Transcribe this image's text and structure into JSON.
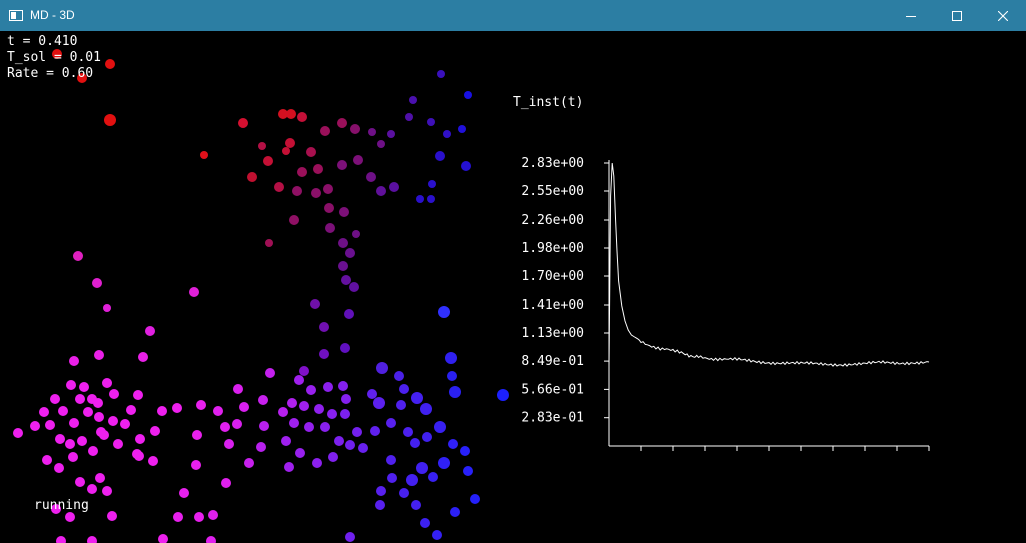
{
  "window": {
    "title": "MD - 3D",
    "minimize_icon": "minimize-icon",
    "maximize_icon": "maximize-icon",
    "close_icon": "close-icon",
    "titlebar_color": "#2c7ea3"
  },
  "hud": {
    "time": "t = 0.410",
    "t_sol": "T_sol = 0.01",
    "rate": "Rate = 0.60",
    "status": "running"
  },
  "chart_data": {
    "type": "line",
    "title": "T_inst(t)",
    "y_tick_labels": [
      "2.83e+00",
      "2.55e+00",
      "2.26e+00",
      "1.98e+00",
      "1.70e+00",
      "1.41e+00",
      "1.13e+00",
      "8.49e-01",
      "5.66e-01",
      "2.83e-01"
    ],
    "y_ticks": [
      2.83,
      2.55,
      2.26,
      1.98,
      1.7,
      1.41,
      1.13,
      0.849,
      0.566,
      0.283
    ],
    "ylim": [
      0,
      3.0
    ],
    "xlim": [
      0,
      1
    ],
    "x_tick_count": 10,
    "series": [
      {
        "color": "#ffffff",
        "points": [
          [
            0.0,
            0.8
          ],
          [
            0.005,
            2.5
          ],
          [
            0.01,
            2.83
          ],
          [
            0.015,
            2.7
          ],
          [
            0.02,
            2.3
          ],
          [
            0.025,
            1.95
          ],
          [
            0.03,
            1.65
          ],
          [
            0.04,
            1.4
          ],
          [
            0.05,
            1.25
          ],
          [
            0.06,
            1.16
          ],
          [
            0.07,
            1.11
          ],
          [
            0.08,
            1.09
          ],
          [
            0.09,
            1.07
          ],
          [
            0.1,
            1.05
          ],
          [
            0.12,
            1.02
          ],
          [
            0.14,
            1.0
          ],
          [
            0.16,
            0.98
          ],
          [
            0.18,
            0.97
          ],
          [
            0.2,
            0.95
          ],
          [
            0.22,
            0.93
          ],
          [
            0.25,
            0.91
          ],
          [
            0.28,
            0.9
          ],
          [
            0.32,
            0.88
          ],
          [
            0.36,
            0.87
          ],
          [
            0.4,
            0.86
          ],
          [
            0.45,
            0.85
          ],
          [
            0.5,
            0.84
          ],
          [
            0.55,
            0.83
          ],
          [
            0.6,
            0.82
          ],
          [
            0.65,
            0.82
          ],
          [
            0.7,
            0.82
          ],
          [
            0.75,
            0.82
          ],
          [
            0.8,
            0.82
          ],
          [
            0.85,
            0.83
          ],
          [
            0.9,
            0.83
          ],
          [
            0.95,
            0.84
          ],
          [
            1.0,
            0.84
          ]
        ]
      }
    ]
  },
  "particles": [
    {
      "x": 57,
      "y": 23,
      "c": "#e21010",
      "r": 5
    },
    {
      "x": 110,
      "y": 33,
      "c": "#e21010",
      "r": 5
    },
    {
      "x": 82,
      "y": 47,
      "c": "#e21010",
      "r": 5
    },
    {
      "x": 110,
      "y": 89,
      "c": "#e21010",
      "r": 6
    },
    {
      "x": 204,
      "y": 124,
      "c": "#e0101a",
      "r": 4
    },
    {
      "x": 243,
      "y": 92,
      "c": "#d41030",
      "r": 5
    },
    {
      "x": 283,
      "y": 83,
      "c": "#d41020",
      "r": 5
    },
    {
      "x": 291,
      "y": 83,
      "c": "#d41020",
      "r": 5
    },
    {
      "x": 302,
      "y": 86,
      "c": "#c41038",
      "r": 5
    },
    {
      "x": 290,
      "y": 112,
      "c": "#c41035",
      "r": 5
    },
    {
      "x": 286,
      "y": 120,
      "c": "#c41035",
      "r": 4
    },
    {
      "x": 268,
      "y": 130,
      "c": "#c41035",
      "r": 5
    },
    {
      "x": 262,
      "y": 115,
      "c": "#b41045",
      "r": 4
    },
    {
      "x": 252,
      "y": 146,
      "c": "#c01030",
      "r": 5
    },
    {
      "x": 279,
      "y": 156,
      "c": "#b41045",
      "r": 5
    },
    {
      "x": 311,
      "y": 121,
      "c": "#a8104e",
      "r": 5
    },
    {
      "x": 325,
      "y": 100,
      "c": "#9a105a",
      "r": 5
    },
    {
      "x": 342,
      "y": 92,
      "c": "#9a105a",
      "r": 5
    },
    {
      "x": 355,
      "y": 98,
      "c": "#86106a",
      "r": 5
    },
    {
      "x": 318,
      "y": 138,
      "c": "#9a105a",
      "r": 5
    },
    {
      "x": 302,
      "y": 141,
      "c": "#9a105a",
      "r": 5
    },
    {
      "x": 297,
      "y": 160,
      "c": "#8f1064",
      "r": 5
    },
    {
      "x": 316,
      "y": 162,
      "c": "#8a1068",
      "r": 5
    },
    {
      "x": 328,
      "y": 158,
      "c": "#8a1068",
      "r": 5
    },
    {
      "x": 342,
      "y": 134,
      "c": "#7c1078",
      "r": 5
    },
    {
      "x": 358,
      "y": 129,
      "c": "#7c1078",
      "r": 5
    },
    {
      "x": 371,
      "y": 146,
      "c": "#6e1086",
      "r": 5
    },
    {
      "x": 381,
      "y": 160,
      "c": "#60109a",
      "r": 5
    },
    {
      "x": 394,
      "y": 156,
      "c": "#5a10a0",
      "r": 5
    },
    {
      "x": 381,
      "y": 113,
      "c": "#6e1086",
      "r": 4
    },
    {
      "x": 372,
      "y": 101,
      "c": "#6e1086",
      "r": 4
    },
    {
      "x": 391,
      "y": 103,
      "c": "#5a10a0",
      "r": 4
    },
    {
      "x": 409,
      "y": 86,
      "c": "#5010a8",
      "r": 4
    },
    {
      "x": 413,
      "y": 69,
      "c": "#4a10ae",
      "r": 4
    },
    {
      "x": 431,
      "y": 91,
      "c": "#3e10b8",
      "r": 4
    },
    {
      "x": 441,
      "y": 43,
      "c": "#3a10bc",
      "r": 4
    },
    {
      "x": 447,
      "y": 103,
      "c": "#3010c8",
      "r": 4
    },
    {
      "x": 440,
      "y": 125,
      "c": "#2a10cc",
      "r": 5
    },
    {
      "x": 432,
      "y": 153,
      "c": "#2a10cc",
      "r": 4
    },
    {
      "x": 420,
      "y": 168,
      "c": "#2a10cc",
      "r": 4
    },
    {
      "x": 431,
      "y": 168,
      "c": "#2a10cc",
      "r": 4
    },
    {
      "x": 466,
      "y": 135,
      "c": "#2410d4",
      "r": 5
    },
    {
      "x": 462,
      "y": 98,
      "c": "#2010da",
      "r": 4
    },
    {
      "x": 468,
      "y": 64,
      "c": "#1810e4",
      "r": 4
    },
    {
      "x": 329,
      "y": 177,
      "c": "#8a1068",
      "r": 5
    },
    {
      "x": 344,
      "y": 181,
      "c": "#7c1078",
      "r": 5
    },
    {
      "x": 294,
      "y": 189,
      "c": "#8f1064",
      "r": 5
    },
    {
      "x": 330,
      "y": 197,
      "c": "#7c1078",
      "r": 5
    },
    {
      "x": 356,
      "y": 203,
      "c": "#6e1086",
      "r": 4
    },
    {
      "x": 343,
      "y": 212,
      "c": "#6e1086",
      "r": 5
    },
    {
      "x": 269,
      "y": 212,
      "c": "#a01055",
      "r": 4
    },
    {
      "x": 350,
      "y": 222,
      "c": "#6a1090",
      "r": 5
    },
    {
      "x": 343,
      "y": 235,
      "c": "#6a1090",
      "r": 5
    },
    {
      "x": 346,
      "y": 249,
      "c": "#6410a0",
      "r": 5
    },
    {
      "x": 354,
      "y": 256,
      "c": "#6010a0",
      "r": 5
    },
    {
      "x": 315,
      "y": 273,
      "c": "#7010a8",
      "r": 5
    },
    {
      "x": 349,
      "y": 283,
      "c": "#6010b8",
      "r": 5
    },
    {
      "x": 324,
      "y": 296,
      "c": "#7010b0",
      "r": 5
    },
    {
      "x": 444,
      "y": 281,
      "c": "#3030ff",
      "r": 6
    },
    {
      "x": 345,
      "y": 317,
      "c": "#6010c0",
      "r": 5
    },
    {
      "x": 324,
      "y": 323,
      "c": "#7010c0",
      "r": 5
    },
    {
      "x": 304,
      "y": 340,
      "c": "#8010c8",
      "r": 5
    },
    {
      "x": 451,
      "y": 327,
      "c": "#3020f0",
      "r": 6
    },
    {
      "x": 382,
      "y": 337,
      "c": "#5020e0",
      "r": 6
    },
    {
      "x": 399,
      "y": 345,
      "c": "#4a20e8",
      "r": 5
    },
    {
      "x": 452,
      "y": 345,
      "c": "#2a20f0",
      "r": 5
    },
    {
      "x": 455,
      "y": 361,
      "c": "#2a20f0",
      "r": 6
    },
    {
      "x": 503,
      "y": 364,
      "c": "#1c20ff",
      "r": 6
    },
    {
      "x": 78,
      "y": 225,
      "c": "#e020c0",
      "r": 5
    },
    {
      "x": 97,
      "y": 252,
      "c": "#e020d0",
      "r": 5
    },
    {
      "x": 194,
      "y": 261,
      "c": "#e020d8",
      "r": 5
    },
    {
      "x": 107,
      "y": 277,
      "c": "#e020d8",
      "r": 4
    },
    {
      "x": 150,
      "y": 300,
      "c": "#e020e0",
      "r": 5
    },
    {
      "x": 143,
      "y": 326,
      "c": "#ea20e8",
      "r": 5
    },
    {
      "x": 99,
      "y": 324,
      "c": "#ea20e8",
      "r": 5
    },
    {
      "x": 74,
      "y": 330,
      "c": "#ea20e8",
      "r": 5
    },
    {
      "x": 18,
      "y": 402,
      "c": "#ee20ee",
      "r": 5
    },
    {
      "x": 44,
      "y": 381,
      "c": "#ee20ee",
      "r": 5
    },
    {
      "x": 50,
      "y": 394,
      "c": "#ee20ee",
      "r": 5
    },
    {
      "x": 63,
      "y": 380,
      "c": "#ee20ee",
      "r": 5
    },
    {
      "x": 74,
      "y": 392,
      "c": "#ee20ee",
      "r": 5
    },
    {
      "x": 55,
      "y": 368,
      "c": "#ee20ee",
      "r": 5
    },
    {
      "x": 71,
      "y": 354,
      "c": "#ee20ee",
      "r": 5
    },
    {
      "x": 80,
      "y": 368,
      "c": "#ee20ee",
      "r": 5
    },
    {
      "x": 88,
      "y": 381,
      "c": "#ee20ee",
      "r": 5
    },
    {
      "x": 99,
      "y": 386,
      "c": "#ee20ee",
      "r": 5
    },
    {
      "x": 101,
      "y": 401,
      "c": "#ee20ee",
      "r": 5
    },
    {
      "x": 113,
      "y": 390,
      "c": "#ee20ee",
      "r": 5
    },
    {
      "x": 125,
      "y": 393,
      "c": "#ee20ee",
      "r": 5
    },
    {
      "x": 118,
      "y": 413,
      "c": "#ee20ee",
      "r": 5
    },
    {
      "x": 131,
      "y": 379,
      "c": "#ee20ee",
      "r": 5
    },
    {
      "x": 138,
      "y": 364,
      "c": "#ee20ee",
      "r": 5
    },
    {
      "x": 107,
      "y": 352,
      "c": "#ee20ee",
      "r": 5
    },
    {
      "x": 114,
      "y": 363,
      "c": "#ee20ee",
      "r": 5
    },
    {
      "x": 92,
      "y": 368,
      "c": "#ee20ee",
      "r": 5
    },
    {
      "x": 84,
      "y": 356,
      "c": "#ee20ee",
      "r": 5
    },
    {
      "x": 98,
      "y": 372,
      "c": "#ee20ee",
      "r": 5
    },
    {
      "x": 60,
      "y": 408,
      "c": "#ee20ee",
      "r": 5
    },
    {
      "x": 70,
      "y": 413,
      "c": "#ee20ee",
      "r": 5
    },
    {
      "x": 82,
      "y": 410,
      "c": "#ee20ee",
      "r": 5
    },
    {
      "x": 93,
      "y": 420,
      "c": "#ee20ee",
      "r": 5
    },
    {
      "x": 104,
      "y": 404,
      "c": "#ee20ee",
      "r": 5
    },
    {
      "x": 137,
      "y": 423,
      "c": "#ee20ee",
      "r": 5
    },
    {
      "x": 155,
      "y": 400,
      "c": "#ee20ee",
      "r": 5
    },
    {
      "x": 162,
      "y": 380,
      "c": "#ee20ee",
      "r": 5
    },
    {
      "x": 177,
      "y": 377,
      "c": "#ee20ee",
      "r": 5
    },
    {
      "x": 197,
      "y": 404,
      "c": "#e820ee",
      "r": 5
    },
    {
      "x": 201,
      "y": 374,
      "c": "#e820ee",
      "r": 5
    },
    {
      "x": 218,
      "y": 380,
      "c": "#e020ee",
      "r": 5
    },
    {
      "x": 225,
      "y": 396,
      "c": "#e020ee",
      "r": 5
    },
    {
      "x": 238,
      "y": 358,
      "c": "#da20ee",
      "r": 5
    },
    {
      "x": 244,
      "y": 376,
      "c": "#d820ee",
      "r": 5
    },
    {
      "x": 237,
      "y": 393,
      "c": "#d820ee",
      "r": 5
    },
    {
      "x": 263,
      "y": 369,
      "c": "#c820ee",
      "r": 5
    },
    {
      "x": 270,
      "y": 342,
      "c": "#c420ee",
      "r": 5
    },
    {
      "x": 283,
      "y": 381,
      "c": "#b820ee",
      "r": 5
    },
    {
      "x": 292,
      "y": 372,
      "c": "#b020ee",
      "r": 5
    },
    {
      "x": 299,
      "y": 349,
      "c": "#a020ee",
      "r": 5
    },
    {
      "x": 304,
      "y": 375,
      "c": "#a020ee",
      "r": 5
    },
    {
      "x": 311,
      "y": 359,
      "c": "#9820ee",
      "r": 5
    },
    {
      "x": 319,
      "y": 378,
      "c": "#9020ee",
      "r": 5
    },
    {
      "x": 328,
      "y": 356,
      "c": "#8c20ee",
      "r": 5
    },
    {
      "x": 343,
      "y": 355,
      "c": "#8420ee",
      "r": 5
    },
    {
      "x": 332,
      "y": 383,
      "c": "#8820ee",
      "r": 5
    },
    {
      "x": 325,
      "y": 396,
      "c": "#8820ee",
      "r": 5
    },
    {
      "x": 309,
      "y": 396,
      "c": "#9420ee",
      "r": 5
    },
    {
      "x": 294,
      "y": 392,
      "c": "#a020ee",
      "r": 5
    },
    {
      "x": 286,
      "y": 410,
      "c": "#a020ee",
      "r": 5
    },
    {
      "x": 264,
      "y": 395,
      "c": "#b820ee",
      "r": 5
    },
    {
      "x": 261,
      "y": 416,
      "c": "#b820ee",
      "r": 5
    },
    {
      "x": 249,
      "y": 432,
      "c": "#c820ee",
      "r": 5
    },
    {
      "x": 229,
      "y": 413,
      "c": "#d820ee",
      "r": 5
    },
    {
      "x": 196,
      "y": 434,
      "c": "#e820ee",
      "r": 5
    },
    {
      "x": 226,
      "y": 452,
      "c": "#e020ee",
      "r": 5
    },
    {
      "x": 184,
      "y": 462,
      "c": "#e820ee",
      "r": 5
    },
    {
      "x": 199,
      "y": 486,
      "c": "#e820ee",
      "r": 5
    },
    {
      "x": 178,
      "y": 486,
      "c": "#e820ee",
      "r": 5
    },
    {
      "x": 213,
      "y": 484,
      "c": "#e020ee",
      "r": 5
    },
    {
      "x": 211,
      "y": 510,
      "c": "#e020ee",
      "r": 5
    },
    {
      "x": 163,
      "y": 508,
      "c": "#ee20ee",
      "r": 5
    },
    {
      "x": 139,
      "y": 425,
      "c": "#ee20ee",
      "r": 5
    },
    {
      "x": 140,
      "y": 408,
      "c": "#ee20ee",
      "r": 5
    },
    {
      "x": 153,
      "y": 430,
      "c": "#ee20ee",
      "r": 5
    },
    {
      "x": 80,
      "y": 451,
      "c": "#ee20ee",
      "r": 5
    },
    {
      "x": 92,
      "y": 458,
      "c": "#ee20ee",
      "r": 5
    },
    {
      "x": 100,
      "y": 447,
      "c": "#ee20ee",
      "r": 5
    },
    {
      "x": 107,
      "y": 460,
      "c": "#ee20ee",
      "r": 5
    },
    {
      "x": 112,
      "y": 485,
      "c": "#ee20ee",
      "r": 5
    },
    {
      "x": 56,
      "y": 478,
      "c": "#ee20ee",
      "r": 5
    },
    {
      "x": 70,
      "y": 486,
      "c": "#ee20ee",
      "r": 5
    },
    {
      "x": 47,
      "y": 429,
      "c": "#ee20ee",
      "r": 5
    },
    {
      "x": 59,
      "y": 437,
      "c": "#ee20ee",
      "r": 5
    },
    {
      "x": 73,
      "y": 426,
      "c": "#ee20ee",
      "r": 5
    },
    {
      "x": 35,
      "y": 395,
      "c": "#ee20ee",
      "r": 5
    },
    {
      "x": 92,
      "y": 510,
      "c": "#ee20ee",
      "r": 5
    },
    {
      "x": 61,
      "y": 510,
      "c": "#ee20ee",
      "r": 5
    },
    {
      "x": 346,
      "y": 368,
      "c": "#8420ee",
      "r": 5
    },
    {
      "x": 345,
      "y": 383,
      "c": "#7c20ee",
      "r": 5
    },
    {
      "x": 357,
      "y": 401,
      "c": "#7420ee",
      "r": 5
    },
    {
      "x": 350,
      "y": 414,
      "c": "#7020ee",
      "r": 5
    },
    {
      "x": 363,
      "y": 417,
      "c": "#6820ee",
      "r": 5
    },
    {
      "x": 375,
      "y": 400,
      "c": "#6020ee",
      "r": 5
    },
    {
      "x": 379,
      "y": 372,
      "c": "#5c20ee",
      "r": 6
    },
    {
      "x": 372,
      "y": 363,
      "c": "#6020ee",
      "r": 5
    },
    {
      "x": 391,
      "y": 392,
      "c": "#5820ee",
      "r": 5
    },
    {
      "x": 401,
      "y": 374,
      "c": "#5020ee",
      "r": 5
    },
    {
      "x": 404,
      "y": 358,
      "c": "#4c20ee",
      "r": 5
    },
    {
      "x": 417,
      "y": 367,
      "c": "#4420f0",
      "r": 6
    },
    {
      "x": 426,
      "y": 378,
      "c": "#4020f0",
      "r": 6
    },
    {
      "x": 408,
      "y": 401,
      "c": "#4c20ee",
      "r": 5
    },
    {
      "x": 415,
      "y": 412,
      "c": "#4420f0",
      "r": 5
    },
    {
      "x": 427,
      "y": 406,
      "c": "#4020f0",
      "r": 5
    },
    {
      "x": 440,
      "y": 396,
      "c": "#3820f2",
      "r": 6
    },
    {
      "x": 453,
      "y": 413,
      "c": "#3020f6",
      "r": 5
    },
    {
      "x": 465,
      "y": 420,
      "c": "#2820fa",
      "r": 5
    },
    {
      "x": 444,
      "y": 432,
      "c": "#3020f6",
      "r": 6
    },
    {
      "x": 422,
      "y": 437,
      "c": "#4020f0",
      "r": 6
    },
    {
      "x": 433,
      "y": 446,
      "c": "#3820f2",
      "r": 5
    },
    {
      "x": 412,
      "y": 449,
      "c": "#4420f0",
      "r": 6
    },
    {
      "x": 391,
      "y": 429,
      "c": "#5020ee",
      "r": 5
    },
    {
      "x": 392,
      "y": 447,
      "c": "#5020ee",
      "r": 5
    },
    {
      "x": 381,
      "y": 460,
      "c": "#5820ee",
      "r": 5
    },
    {
      "x": 404,
      "y": 462,
      "c": "#4820ee",
      "r": 5
    },
    {
      "x": 416,
      "y": 474,
      "c": "#4420f0",
      "r": 5
    },
    {
      "x": 425,
      "y": 492,
      "c": "#3c20f2",
      "r": 5
    },
    {
      "x": 437,
      "y": 504,
      "c": "#3420f4",
      "r": 5
    },
    {
      "x": 455,
      "y": 481,
      "c": "#2c20f6",
      "r": 5
    },
    {
      "x": 475,
      "y": 468,
      "c": "#2420fa",
      "r": 5
    },
    {
      "x": 468,
      "y": 440,
      "c": "#2820fa",
      "r": 5
    },
    {
      "x": 339,
      "y": 410,
      "c": "#7c20ee",
      "r": 5
    },
    {
      "x": 333,
      "y": 426,
      "c": "#8020ee",
      "r": 5
    },
    {
      "x": 317,
      "y": 432,
      "c": "#8c20ee",
      "r": 5
    },
    {
      "x": 300,
      "y": 422,
      "c": "#9820ee",
      "r": 5
    },
    {
      "x": 289,
      "y": 436,
      "c": "#a020ee",
      "r": 5
    },
    {
      "x": 350,
      "y": 506,
      "c": "#7020ee",
      "r": 5
    },
    {
      "x": 380,
      "y": 474,
      "c": "#5820ee",
      "r": 5
    }
  ]
}
